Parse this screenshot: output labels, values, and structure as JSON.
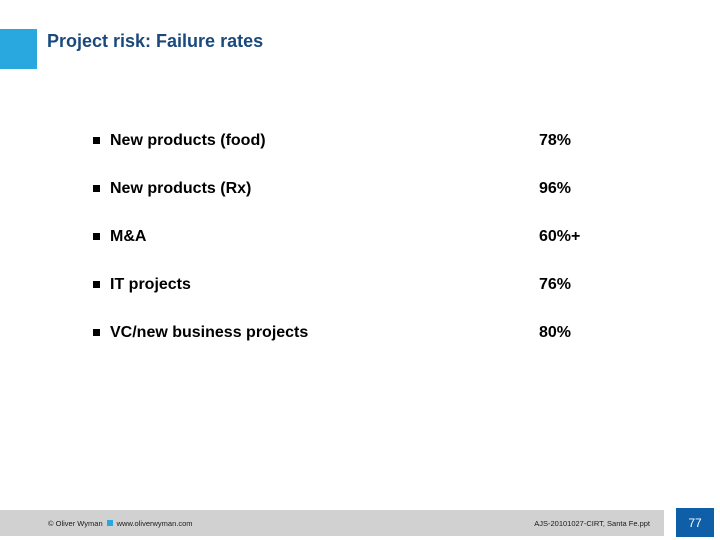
{
  "header": {
    "title": "Project risk: Failure rates"
  },
  "list": {
    "items": [
      {
        "label": "New products (food)",
        "value": "78%"
      },
      {
        "label": "New products (Rx)",
        "value": "96%"
      },
      {
        "label": "M&A",
        "value": "60%+"
      },
      {
        "label": "IT projects",
        "value": "76%"
      },
      {
        "label": "VC/new business projects",
        "value": "80%"
      }
    ]
  },
  "footer": {
    "copyright": "© Oliver Wyman",
    "website": "www.oliverwyman.com",
    "filename": "AJS-20101027-CIRT, Santa Fe.ppt",
    "page_number": "77"
  },
  "colors": {
    "accent_blue": "#29A8DF",
    "title_text": "#1A497C",
    "page_badge_blue": "#0F5EA8",
    "footer_bar_gray": "#D1D1D1",
    "body_text": "#000000"
  }
}
